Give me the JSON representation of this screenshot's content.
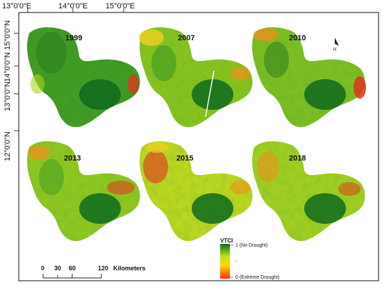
{
  "top_axis": {
    "labels": [
      "13°0'0\"E",
      "14°0'0\"E",
      "15°0'0\"E"
    ]
  },
  "left_axis": {
    "labels": [
      "15°0'0\"N",
      "14°0'0\"N",
      "13°0'0\"N",
      "12°0'0\"N"
    ]
  },
  "panels": [
    {
      "year": "1999",
      "drought_level": 0.15
    },
    {
      "year": "2007",
      "drought_level": 0.45
    },
    {
      "year": "2010",
      "drought_level": 0.35
    },
    {
      "year": "2013",
      "drought_level": 0.35
    },
    {
      "year": "2015",
      "drought_level": 0.55
    },
    {
      "year": "2018",
      "drought_level": 0.45
    }
  ],
  "north_arrow": {
    "label": "N"
  },
  "legend": {
    "title": "VTCI",
    "max_label": "1 (No Drought)",
    "mid_label": "-",
    "min_label": "0 (Extreme Drought)",
    "colors": [
      "#0a6b1f",
      "#b6e21b",
      "#ffd800",
      "#ff2b10"
    ]
  },
  "scale_bar": {
    "ticks": [
      "0",
      "30",
      "60",
      "120"
    ],
    "unit": "Kilometers"
  },
  "colors": {
    "green_dark": "#0f6a1d",
    "green": "#3f9a23",
    "yellow_green": "#a8d31f",
    "yellow": "#f0d020",
    "orange": "#f38d1d",
    "red": "#e3331f"
  }
}
